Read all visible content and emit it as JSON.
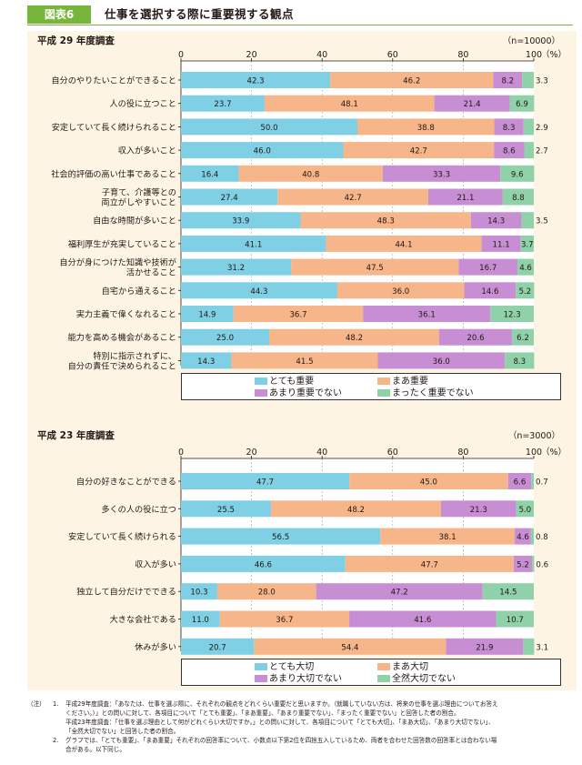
{
  "header": {
    "badge": "図表6",
    "title": "仕事を選択する際に重要視する観点"
  },
  "colors": {
    "very": "#7fd0e4",
    "somewhat": "#f6b68a",
    "notvery": "#c78ed4",
    "notatall": "#8fd1a8",
    "accent": "#77b53b",
    "panel": "#fdf4e4"
  },
  "chart_data": [
    {
      "type": "bar",
      "orientation": "horizontal",
      "stacked": true,
      "title": "平成 29 年度調査",
      "sample": "（n=10000）",
      "unit": "（%）",
      "xlim": [
        0,
        100
      ],
      "ticks": [
        "0",
        "20",
        "40",
        "60",
        "80",
        "100"
      ],
      "categories": [
        "自分のやりたいことができること",
        "人の役に立つこと",
        "安定していて長く続けられること",
        "収入が多いこと",
        "社会的評価の高い仕事であること",
        "子育て、介護等との\n両立がしやすいこと",
        "自由な時間が多いこと",
        "福利厚生が充実していること",
        "自分が身につけた知識や技術が\n活かせること",
        "自宅から通えること",
        "実力主義で偉くなれること",
        "能力を高める機会があること",
        "特別に指示されずに、\n自分の責任で決められること"
      ],
      "series": [
        {
          "name": "とても重要",
          "values": [
            42.3,
            23.7,
            50.0,
            46.0,
            16.4,
            27.4,
            33.9,
            41.1,
            31.2,
            44.3,
            14.9,
            25.0,
            14.3
          ]
        },
        {
          "name": "まあ重要",
          "values": [
            46.2,
            48.1,
            38.8,
            42.7,
            40.8,
            42.7,
            48.3,
            44.1,
            47.5,
            36.0,
            36.7,
            48.2,
            41.5
          ]
        },
        {
          "name": "あまり重要でない",
          "values": [
            8.2,
            21.4,
            8.3,
            8.6,
            33.3,
            21.1,
            14.3,
            11.1,
            16.7,
            14.6,
            36.1,
            20.6,
            36.0
          ]
        },
        {
          "name": "まったく重要でない",
          "values": [
            3.3,
            6.9,
            2.9,
            2.7,
            9.6,
            8.8,
            3.5,
            3.7,
            4.6,
            5.2,
            12.3,
            6.2,
            8.3
          ]
        }
      ]
    },
    {
      "type": "bar",
      "orientation": "horizontal",
      "stacked": true,
      "title": "平成 23 年度調査",
      "sample": "（n=3000）",
      "unit": "（%）",
      "xlim": [
        0,
        100
      ],
      "ticks": [
        "0",
        "20",
        "40",
        "60",
        "80",
        "100"
      ],
      "categories": [
        "自分の好きなことができる",
        "多くの人の役に立つ",
        "安定していて長く続けられる",
        "収入が多い",
        "独立して自分だけでできる",
        "大きな会社である",
        "休みが多い"
      ],
      "series": [
        {
          "name": "とても大切",
          "values": [
            47.7,
            25.5,
            56.5,
            46.6,
            10.3,
            11.0,
            20.7
          ]
        },
        {
          "name": "まあ大切",
          "values": [
            45.0,
            48.2,
            38.1,
            47.7,
            28.0,
            36.7,
            54.4
          ]
        },
        {
          "name": "あまり大切でない",
          "values": [
            6.6,
            21.3,
            4.6,
            5.2,
            47.2,
            41.6,
            21.9
          ]
        },
        {
          "name": "全然大切でない",
          "values": [
            0.7,
            5.0,
            0.8,
            0.6,
            14.5,
            10.7,
            3.1
          ]
        }
      ]
    }
  ],
  "notes": {
    "label": "（注）",
    "items": [
      {
        "num": "1.",
        "lines": [
          "平成29年度調査：「あなたは、仕事を選ぶ際に、それぞれの観点をどれくらい重要だと思いますか。（就職していない方は、将来の仕事を選ぶ理由についてお答え",
          "ください。）」との問いに対して、各項目について「とても重要」、「まあ重要」、「あまり重要でない」、「まったく重要でない」と回答した者の割合。",
          "平成23年度調査：「仕事を選ぶ理由として何がどれくらい大切ですか。」との問いに対して、各項目について「とても大切」、「まあ大切」、「あまり大切でない」、",
          "「全然大切でない」と回答した者の割合。"
        ]
      },
      {
        "num": "2.",
        "lines": [
          "グラフでは、「とても重要」、「まあ重要」それぞれの回答率について、小数点以下第2位を四捨五入しているため、両者を合わせた回答数の回答率とは合わない場",
          "合がある。以下同じ。"
        ]
      }
    ]
  }
}
